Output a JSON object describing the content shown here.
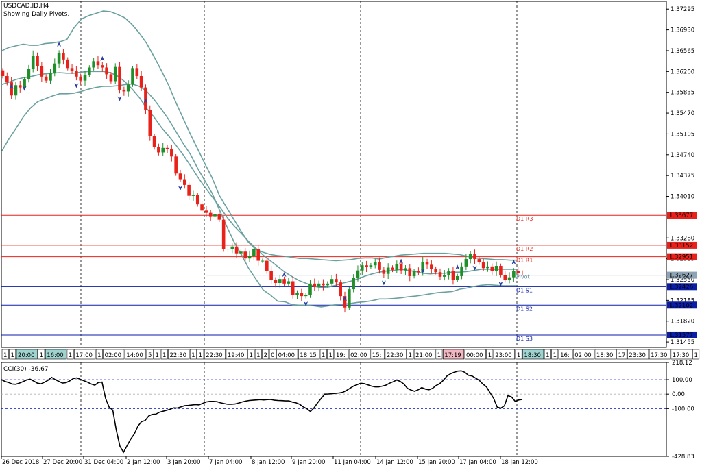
{
  "header": {
    "symbol": "USDCAD.ID,H4",
    "subtitle": "Showing Daily Pivots."
  },
  "colors": {
    "bull": "#1f8f2a",
    "bear": "#e8221a",
    "band": "#6aa0a0",
    "resistance": "#e8221a",
    "support": "#0b1ea8",
    "pivot": "#8ea3b4",
    "cci_line": "#000000",
    "cci_level": "#2233cc"
  },
  "chart_data": [
    {
      "type": "candlestick",
      "title": "USDCAD.ID,H4",
      "subtitle": "Showing Daily Pivots.",
      "y_ticks": [
        "1.37295",
        "1.36930",
        "1.36565",
        "1.36200",
        "1.35835",
        "1.35470",
        "1.35105",
        "1.34740",
        "1.34375",
        "1.34010",
        "1.33280",
        "1.32915",
        "1.32550",
        "1.32185",
        "1.31820",
        "1.31455"
      ],
      "ylim": [
        1.3136,
        1.3743
      ],
      "pivot_levels": [
        {
          "name": "D1 R3",
          "value": 1.33677,
          "label": "1.33677",
          "kind": "resistance"
        },
        {
          "name": "D1 R2",
          "value": 1.33152,
          "label": "1.33152",
          "kind": "resistance"
        },
        {
          "name": "D1 R1",
          "value": 1.32951,
          "label": "1.32951",
          "kind": "resistance"
        },
        {
          "name": "Pivot",
          "value": 1.32627,
          "label": "1.32627",
          "kind": "pivot"
        },
        {
          "name": "D1 S1",
          "value": 1.32426,
          "label": "1.32426",
          "kind": "support"
        },
        {
          "name": "D1 S2",
          "value": 1.32102,
          "label": "1.32102",
          "kind": "support"
        },
        {
          "name": "D1 S3",
          "value": 1.31577,
          "label": "1.31577",
          "kind": "support"
        }
      ],
      "x_ticks": [
        "26 Dec 2018",
        "27 Dec 20:00",
        "31 Dec 04:00",
        "2 Jan 12:00",
        "3 Jan 20:00",
        "7 Jan 04:00",
        "8 Jan 12:00",
        "9 Jan 20:00",
        "11 Jan 04:00",
        "14 Jan 12:00",
        "15 Jan 20:00",
        "17 Jan 04:00",
        "18 Jan 12:00"
      ],
      "period_labels": [
        "1",
        "1",
        "20:00",
        "1",
        "16:00",
        "1",
        "17:00",
        "1",
        "02:00",
        "14:00",
        "5",
        "1",
        "1",
        "22:30",
        "1",
        "1",
        "22:30",
        "19:40",
        "1",
        "1",
        "2",
        "0",
        "04:00",
        "18:15",
        "1",
        "1",
        "19:",
        "02:00",
        "15:",
        "22:30",
        "1",
        "21:00",
        "1",
        "17:19",
        "00:00",
        "1",
        "23:00",
        "1",
        "18:30",
        "1",
        "1",
        "16:",
        "02:00",
        "18:30",
        "17",
        "23:30",
        "17:30",
        "17:30",
        "1"
      ],
      "closes": [
        1.3612,
        1.3601,
        1.3578,
        1.3596,
        1.3592,
        1.3606,
        1.3625,
        1.3648,
        1.3629,
        1.3611,
        1.3604,
        1.3618,
        1.3634,
        1.3652,
        1.3641,
        1.3626,
        1.3621,
        1.3611,
        1.3604,
        1.3614,
        1.3627,
        1.3638,
        1.3631,
        1.3627,
        1.3615,
        1.3603,
        1.3628,
        1.3588,
        1.3585,
        1.3597,
        1.3626,
        1.3612,
        1.3592,
        1.3553,
        1.3507,
        1.3487,
        1.3478,
        1.3486,
        1.3484,
        1.3471,
        1.3441,
        1.3431,
        1.3421,
        1.3402,
        1.3403,
        1.3387,
        1.3376,
        1.3372,
        1.3366,
        1.337,
        1.336,
        1.3309,
        1.3309,
        1.3313,
        1.3301,
        1.3304,
        1.3292,
        1.3297,
        1.3308,
        1.3288,
        1.3288,
        1.327,
        1.3254,
        1.3249,
        1.3256,
        1.3248,
        1.3252,
        1.3228,
        1.3231,
        1.3226,
        1.3228,
        1.3248,
        1.3242,
        1.3248,
        1.3245,
        1.3248,
        1.3256,
        1.325,
        1.3226,
        1.3206,
        1.3238,
        1.3258,
        1.3271,
        1.328,
        1.3277,
        1.328,
        1.3285,
        1.3272,
        1.3265,
        1.3276,
        1.3272,
        1.3282,
        1.3271,
        1.3275,
        1.3261,
        1.327,
        1.3268,
        1.3286,
        1.3281,
        1.3274,
        1.3268,
        1.326,
        1.3263,
        1.327,
        1.3255,
        1.3261,
        1.3278,
        1.3291,
        1.33,
        1.3291,
        1.3285,
        1.3275,
        1.3278,
        1.327,
        1.3279,
        1.3263,
        1.3255,
        1.3259,
        1.327,
        1.3267,
        1.3266
      ],
      "lower_band": [
        1.3479,
        1.3501,
        1.352,
        1.354,
        1.3556,
        1.3567,
        1.3572,
        1.3577,
        1.3581,
        1.3581,
        1.3582,
        1.3585,
        1.3589,
        1.3592,
        1.3594,
        1.3594,
        1.3595,
        1.3597,
        1.3598,
        1.3594,
        1.3585,
        1.3571,
        1.3554,
        1.3536,
        1.3515,
        1.3494,
        1.3475,
        1.345,
        1.3428,
        1.3406,
        1.3377,
        1.3348,
        1.3321,
        1.3299,
        1.3275,
        1.3256,
        1.3237,
        1.3228,
        1.3217,
        1.3216,
        1.3211,
        1.321,
        1.321,
        1.3209,
        1.3207,
        1.3209,
        1.3211,
        1.3212,
        1.3213,
        1.3215,
        1.3216,
        1.3218,
        1.3221,
        1.3221,
        1.3222,
        1.3223,
        1.3225,
        1.3226,
        1.3228,
        1.323,
        1.3232,
        1.3233,
        1.3234,
        1.3238,
        1.324,
        1.3243,
        1.3245,
        1.3246,
        1.3245,
        1.3244,
        1.3244,
        1.3244
      ],
      "middle_band": [
        1.3597,
        1.3601,
        1.3606,
        1.3609,
        1.3611,
        1.3614,
        1.3616,
        1.3617,
        1.3618,
        1.3617,
        1.3617,
        1.3619,
        1.362,
        1.362,
        1.362,
        1.3618,
        1.3612,
        1.3602,
        1.3589,
        1.3574,
        1.3555,
        1.354,
        1.3522,
        1.3507,
        1.3491,
        1.3474,
        1.3455,
        1.3435,
        1.3417,
        1.34,
        1.3383,
        1.3365,
        1.3349,
        1.3336,
        1.3322,
        1.331,
        1.3298,
        1.3288,
        1.3278,
        1.3268,
        1.326,
        1.3253,
        1.3248,
        1.3243,
        1.3241,
        1.3242,
        1.3245,
        1.3249,
        1.3252,
        1.3256,
        1.3261,
        1.3265,
        1.3268,
        1.327,
        1.3271,
        1.3273,
        1.3271,
        1.3269,
        1.3266,
        1.3265,
        1.3266,
        1.3266,
        1.3268,
        1.3268,
        1.3269,
        1.3271,
        1.3273,
        1.3273,
        1.3273,
        1.3273,
        1.3273,
        1.3273
      ],
      "upper_band": [
        1.3656,
        1.3662,
        1.3665,
        1.3668,
        1.3666,
        1.3666,
        1.3669,
        1.367,
        1.3672,
        1.3676,
        1.3697,
        1.3712,
        1.3718,
        1.3722,
        1.3726,
        1.3725,
        1.372,
        1.3714,
        1.3702,
        1.3687,
        1.3669,
        1.3646,
        1.3622,
        1.3596,
        1.3566,
        1.3538,
        1.351,
        1.3484,
        1.3458,
        1.3433,
        1.3402,
        1.3381,
        1.336,
        1.3339,
        1.332,
        1.3308,
        1.3303,
        1.3299,
        1.3297,
        1.3296,
        1.3294,
        1.3292,
        1.3292,
        1.3291,
        1.329,
        1.3289,
        1.3288,
        1.3289,
        1.329,
        1.3292,
        1.3293,
        1.3293,
        1.3291,
        1.3294,
        1.3296,
        1.3298,
        1.3299,
        1.33,
        1.3301,
        1.3301,
        1.3301,
        1.3301,
        1.33,
        1.3299,
        1.3296,
        1.3293,
        1.3292,
        1.3291,
        1.329,
        1.329,
        1.3289,
        1.3289
      ]
    },
    {
      "type": "line",
      "title": "CCI(30) -36.67",
      "y_ticks": [
        "218.12",
        "100.00",
        "0.00",
        "-100.00",
        "-428.83"
      ],
      "levels": [
        100,
        0,
        -100
      ],
      "ylim": [
        -428.83,
        218.12
      ],
      "values": [
        100,
        88,
        80,
        70,
        68,
        76,
        86,
        97,
        103,
        90,
        76,
        71,
        82,
        96,
        115,
        100,
        88,
        76,
        79,
        91,
        107,
        112,
        102,
        92,
        82,
        70,
        62,
        80,
        83,
        -30,
        -90,
        -110,
        -250,
        -360,
        -400,
        -355,
        -310,
        -275,
        -220,
        -190,
        -182,
        -150,
        -140,
        -138,
        -125,
        -118,
        -112,
        -104,
        -95,
        -96,
        -88,
        -80,
        -78,
        -75,
        -72,
        -74,
        -64,
        -54,
        -50,
        -50,
        -52,
        -60,
        -65,
        -70,
        -70,
        -68,
        -62,
        -54,
        -48,
        -44,
        -42,
        -40,
        -38,
        -40,
        -38,
        -37,
        -42,
        -44,
        -45,
        -47,
        -47,
        -55,
        -60,
        -70,
        -88,
        -100,
        -120,
        -95,
        -60,
        -30,
        0,
        1,
        3,
        5,
        8,
        12,
        25,
        40,
        55,
        65,
        75,
        72,
        64,
        55,
        50,
        50,
        55,
        62,
        75,
        85,
        97,
        88,
        70,
        40,
        28,
        20,
        30,
        45,
        35,
        30,
        40,
        60,
        72,
        95,
        124,
        140,
        150,
        158,
        160,
        150,
        130,
        125,
        110,
        95,
        70,
        50,
        10,
        -30,
        -90,
        -97,
        -80,
        -10,
        -20,
        -50,
        -40,
        -37
      ]
    }
  ]
}
